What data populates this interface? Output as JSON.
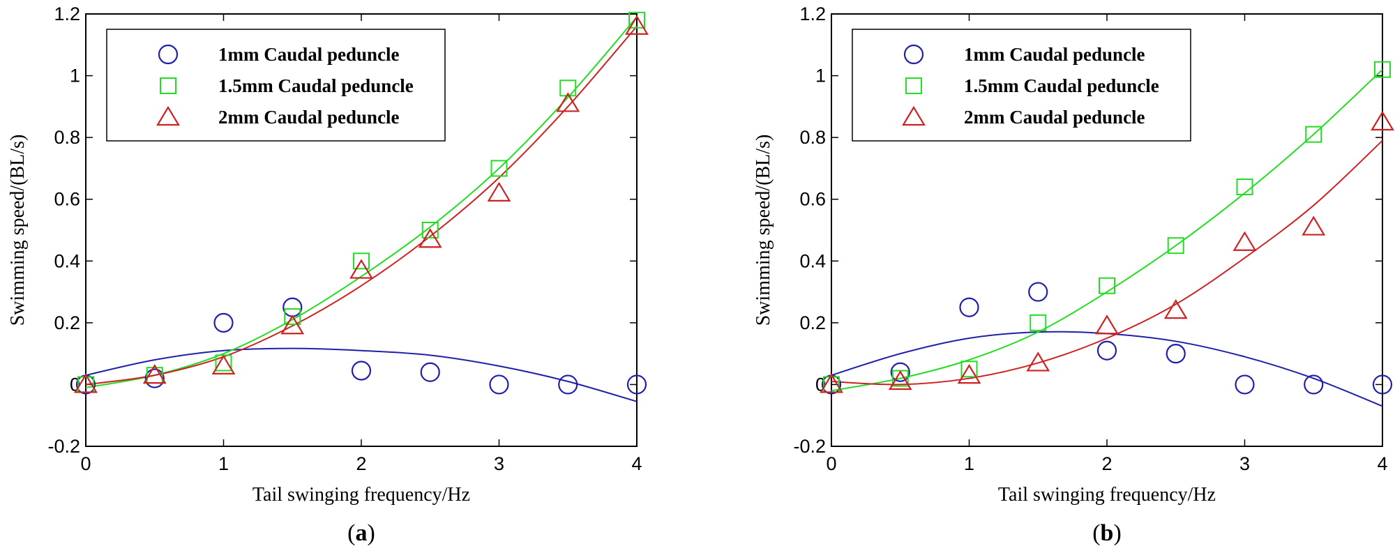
{
  "chart_data": [
    {
      "type": "scatter",
      "caption_open": "(",
      "caption_letter": "a",
      "caption_close": ")",
      "xlabel": "Tail swinging frequency/Hz",
      "ylabel": "Swimming speed/(BL/s)",
      "xlim": [
        0,
        4
      ],
      "ylim": [
        -0.2,
        1.2
      ],
      "xticks": [
        "0",
        "1",
        "2",
        "3",
        "4"
      ],
      "yticks": [
        "-0.2",
        "0",
        "0.2",
        "0.4",
        "0.6",
        "0.8",
        "1",
        "1.2"
      ],
      "legend_position": "top-left",
      "series": [
        {
          "name": "1mm Caudal peduncle",
          "marker": "circle",
          "color": "#1f1fa8",
          "x": [
            0,
            0.5,
            1,
            1.5,
            2,
            2.5,
            3,
            3.5,
            4
          ],
          "y": [
            0,
            0.02,
            0.2,
            0.25,
            0.045,
            0.04,
            0,
            0,
            0
          ],
          "fit_x": [
            0,
            0.5,
            1,
            1.5,
            2,
            2.5,
            3,
            3.5,
            4
          ],
          "fit_y": [
            0.03,
            0.08,
            0.11,
            0.117,
            0.11,
            0.095,
            0.06,
            0.01,
            -0.055
          ]
        },
        {
          "name": "1.5mm Caudal peduncle",
          "marker": "square",
          "color": "#22dd22",
          "x": [
            0,
            0.5,
            1,
            1.5,
            2,
            2.5,
            3,
            3.5,
            4
          ],
          "y": [
            0,
            0.03,
            0.07,
            0.22,
            0.4,
            0.5,
            0.7,
            0.96,
            1.18
          ],
          "fit_x": [
            0,
            0.5,
            1,
            1.5,
            2,
            2.5,
            3,
            3.5,
            4
          ],
          "fit_y": [
            -0.01,
            0.03,
            0.1,
            0.21,
            0.35,
            0.51,
            0.7,
            0.93,
            1.19
          ]
        },
        {
          "name": "2mm Caudal peduncle",
          "marker": "triangle",
          "color": "#cc2222",
          "x": [
            0,
            0.5,
            1,
            1.5,
            2,
            2.5,
            3,
            3.5,
            4
          ],
          "y": [
            0,
            0.03,
            0.06,
            0.19,
            0.37,
            0.47,
            0.62,
            0.91,
            1.16
          ],
          "fit_x": [
            0,
            0.5,
            1,
            1.5,
            2,
            2.5,
            3,
            3.5,
            4
          ],
          "fit_y": [
            0,
            0.03,
            0.09,
            0.19,
            0.32,
            0.48,
            0.67,
            0.9,
            1.16
          ]
        }
      ]
    },
    {
      "type": "scatter",
      "caption_open": "(",
      "caption_letter": "b",
      "caption_close": ")",
      "xlabel": "Tail swinging frequency/Hz",
      "ylabel": "Swimming speed/(BL/s)",
      "xlim": [
        0,
        4
      ],
      "ylim": [
        -0.2,
        1.2
      ],
      "xticks": [
        "0",
        "1",
        "2",
        "3",
        "4"
      ],
      "yticks": [
        "-0.2",
        "0",
        "0.2",
        "0.4",
        "0.6",
        "0.8",
        "1",
        "1.2"
      ],
      "legend_position": "top-left",
      "series": [
        {
          "name": "1mm Caudal peduncle",
          "marker": "circle",
          "color": "#1f1fa8",
          "x": [
            0,
            0.5,
            1,
            1.5,
            2,
            2.5,
            3,
            3.5,
            4
          ],
          "y": [
            0,
            0.04,
            0.25,
            0.3,
            0.11,
            0.1,
            0,
            0,
            0
          ],
          "fit_x": [
            0,
            0.5,
            1,
            1.5,
            2,
            2.5,
            3,
            3.5,
            4
          ],
          "fit_y": [
            0.03,
            0.1,
            0.15,
            0.17,
            0.165,
            0.14,
            0.09,
            0.02,
            -0.07
          ]
        },
        {
          "name": "1.5mm Caudal peduncle",
          "marker": "square",
          "color": "#22dd22",
          "x": [
            0,
            0.5,
            1,
            1.5,
            2,
            2.5,
            3,
            3.5,
            4
          ],
          "y": [
            0,
            0.02,
            0.05,
            0.2,
            0.32,
            0.45,
            0.64,
            0.81,
            1.02
          ],
          "fit_x": [
            0,
            0.5,
            1,
            1.5,
            2,
            2.5,
            3,
            3.5,
            4
          ],
          "fit_y": [
            -0.02,
            0.02,
            0.08,
            0.17,
            0.3,
            0.45,
            0.62,
            0.81,
            1.02
          ]
        },
        {
          "name": "2mm Caudal peduncle",
          "marker": "triangle",
          "color": "#cc2222",
          "x": [
            0,
            0.5,
            1,
            1.5,
            2,
            2.5,
            3,
            3.5,
            4
          ],
          "y": [
            0,
            0.01,
            0.03,
            0.07,
            0.19,
            0.24,
            0.46,
            0.51,
            0.85
          ],
          "fit_x": [
            0,
            0.5,
            1,
            1.5,
            2,
            2.5,
            3,
            3.5,
            4
          ],
          "fit_y": [
            0.01,
            0,
            0.02,
            0.07,
            0.15,
            0.26,
            0.41,
            0.58,
            0.79
          ]
        }
      ]
    }
  ]
}
